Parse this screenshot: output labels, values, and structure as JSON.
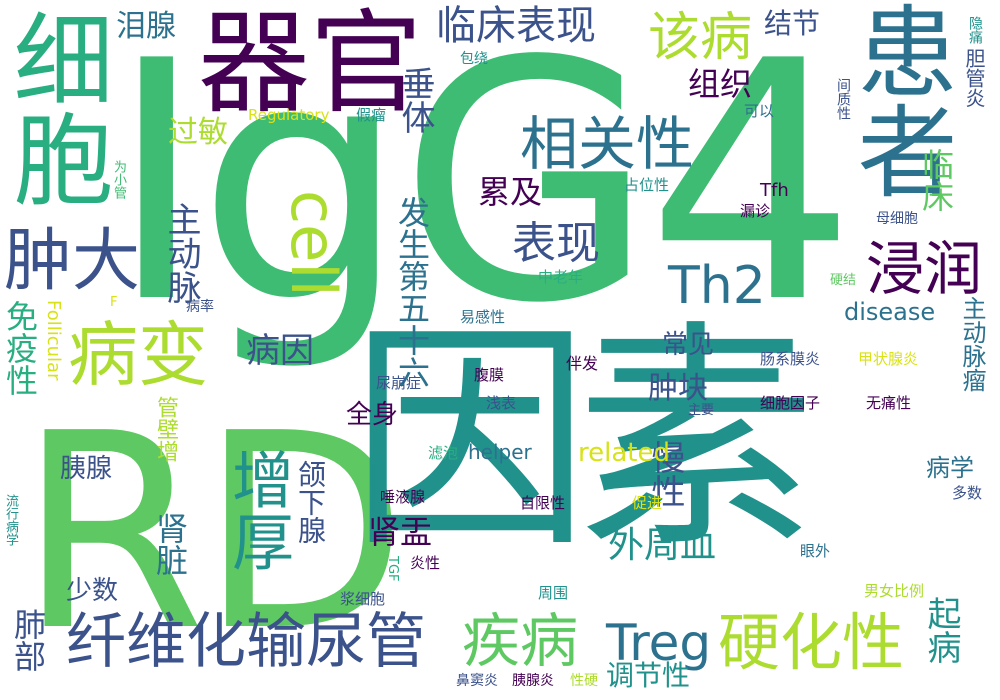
{
  "palette": {
    "dark_purple": "#440154",
    "indigo": "#3b528b",
    "blue": "#2c728e",
    "teal": "#21918c",
    "green": "#28ae80",
    "emerald": "#3fbc73",
    "lime": "#5ec962",
    "yellow_green": "#addc30",
    "yellow": "#d8e219"
  },
  "words": {
    "igg4": "IgG4",
    "rd": "RD",
    "yinsu": "因素",
    "qiguan": "器官",
    "xibao": "细胞",
    "huanzhe": "患者",
    "bingbian": "病变",
    "zhongda": "肿大",
    "cell": "cell",
    "xiangguanxing": "相关性",
    "gaibing": "该病",
    "linchuangbiaoxian": "临床表现",
    "th2": "Th2",
    "jinrun": "浸润",
    "biaoxian": "表现",
    "zengchou": "增厚",
    "xianweihua": "纤维化输尿管",
    "jibing": "疾病",
    "treg": "Treg",
    "yinghuaxing": "硬化性",
    "leiji": "累及",
    "zhudongmai": "主动脉",
    "fashengdiwushiliu": "发生第五十六",
    "mianyixing": "免疫性",
    "bingyin": "病因",
    "waizhouxue": "外周血",
    "manxing": "慢性",
    "shenzang": "肾脏",
    "shenyu": "肾盂",
    "hexiaxian": "颌下腺",
    "guanbizeng": "管壁增",
    "quanshen": "全身",
    "zhongkuai": "肿块",
    "changjian": "常见",
    "disease": "disease",
    "related": "related",
    "helper": "helper",
    "follicular": "Follicular",
    "regulatory": "Regulatory",
    "leixian": "泪腺",
    "jiejie": "结节",
    "zuzhi": "组织",
    "guomin": "过敏",
    "chuiti": "垂体",
    "linchuang": "临床",
    "zhudongmailiu": "主动脉瘤",
    "qibing": "起病",
    "tiaojiexing": "调节性",
    "fei": "肺部",
    "yixian": "胰腺",
    "shaoshu": "少数",
    "bingxue": "病学",
    "tfh": "Tfh",
    "bingxian": "包绕",
    "jiaxiu": "假瘤",
    "keyi": "可以",
    "jianzhixing": "间质性",
    "danguanyan": "胆管炎",
    "yinni": "隐痛",
    "weixiaoguan": "为小管",
    "zhanweixing": "占位性",
    "louzhen": "漏诊",
    "muxibao": "母细胞",
    "zhonglaonian": "中老年",
    "yinggan": "硬结",
    "bingliu": "病率",
    "yiganxing": "易感性",
    "F": "F",
    "fumo": "腹膜",
    "banfa": "伴发",
    "changximoyan": "肠系膜炎",
    "jiazhuangxianyan": "甲状腺炎",
    "niaobengzheng": "尿崩症",
    "qianbiao": "浅表",
    "zhuyao": "主要",
    "xibaoyinzi": "细胞因子",
    "wutongxing": "无痛性",
    "lvpao": "滤泡",
    "shuiyexian": "唾液腺",
    "zixianxing": "自限性",
    "cujin": "促进",
    "duoshu": "多数",
    "liuxingbingxue": "流行病学",
    "tgf": "TGF",
    "yanxing": "炎性",
    "yanwai": "眼外",
    "jiangxibao": "浆细胞",
    "zhouwei": "周围",
    "nannvbili": "男女比例",
    "bidouyan": "鼻窦炎",
    "yixianyan": "胰腺炎",
    "xingying": "性硬"
  }
}
